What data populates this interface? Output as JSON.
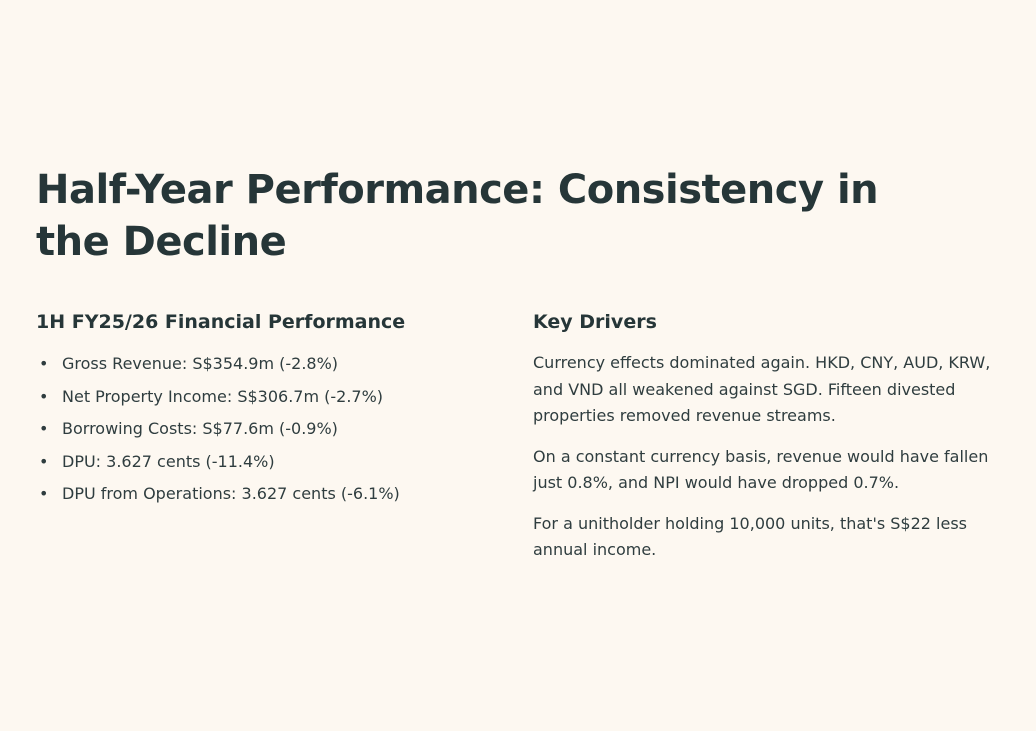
{
  "title": "Half-Year Performance: Consistency in the Decline",
  "left": {
    "heading": "1H FY25/26 Financial Performance",
    "items": [
      "Gross Revenue: S$354.9m (-2.8%)",
      "Net Property Income: S$306.7m (-2.7%)",
      "Borrowing Costs: S$77.6m (-0.9%)",
      "DPU: 3.627 cents (-11.4%)",
      "DPU from Operations: 3.627 cents (-6.1%)"
    ]
  },
  "right": {
    "heading": "Key Drivers",
    "paragraphs": [
      "Currency effects dominated again. HKD, CNY, AUD, KRW, and VND all weakened against SGD. Fifteen divested properties removed revenue streams.",
      "On a constant currency basis, revenue would have fallen just 0.8%, and NPI would have dropped 0.7%.",
      "For a unitholder holding 10,000 units, that's S$22 less annual income."
    ]
  }
}
